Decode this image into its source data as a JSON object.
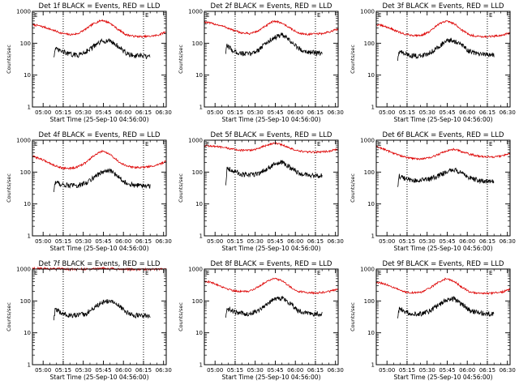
{
  "figure": {
    "x_tick_labels": [
      "05:00",
      "05:15",
      "05:30",
      "05:45",
      "06:00",
      "06:15",
      "06:30"
    ],
    "y_tick_labels": [
      "1",
      "10",
      "100",
      "1000"
    ],
    "xlabel": "Start Time (25-Sep-10 04:56:00)",
    "ylabel": "Counts/sec",
    "marker_label": "E"
  },
  "colors": {
    "events": "#000000",
    "lld": "#dd0000",
    "vline": "#000000"
  },
  "chart_data": [
    {
      "type": "line",
      "title": "Det 1f BLACK = Events, RED = LLD",
      "xlabel": "Start Time (25-Sep-10 04:56:00)",
      "ylabel": "Counts/sec",
      "log_y": true,
      "xlim_min": [
        -4,
        96
      ],
      "ylim": [
        1,
        1000
      ],
      "markers_min": [
        19,
        79
      ],
      "series": [
        {
          "key": "lld",
          "color": "#dd0000",
          "x": [
            -4,
            0,
            6,
            12,
            18,
            24,
            30,
            36,
            42,
            48,
            54,
            60,
            66,
            72,
            78,
            84,
            90,
            96
          ],
          "y": [
            380,
            360,
            310,
            250,
            205,
            185,
            200,
            280,
            420,
            530,
            430,
            270,
            185,
            165,
            160,
            165,
            180,
            230
          ]
        },
        {
          "key": "events",
          "color": "#000000",
          "x": [
            12,
            13,
            18,
            24,
            30,
            36,
            42,
            48,
            54,
            60,
            66,
            72,
            78,
            84
          ],
          "y": [
            40,
            65,
            55,
            45,
            42,
            55,
            80,
            115,
            120,
            80,
            48,
            40,
            40,
            36
          ]
        }
      ]
    },
    {
      "type": "line",
      "title": "Det 2f BLACK = Events, RED = LLD",
      "xlabel": "Start Time (25-Sep-10 04:56:00)",
      "ylabel": "Counts/sec",
      "log_y": true,
      "xlim_min": [
        -4,
        96
      ],
      "ylim": [
        1,
        1000
      ],
      "markers_min": [
        19,
        79
      ],
      "series": [
        {
          "key": "lld",
          "color": "#dd0000",
          "x": [
            -4,
            0,
            6,
            12,
            18,
            24,
            30,
            36,
            42,
            48,
            54,
            60,
            66,
            72,
            78,
            84,
            90,
            96
          ],
          "y": [
            470,
            430,
            380,
            320,
            250,
            210,
            200,
            240,
            350,
            500,
            430,
            300,
            210,
            190,
            195,
            200,
            230,
            280
          ]
        },
        {
          "key": "events",
          "color": "#000000",
          "x": [
            12,
            13,
            18,
            24,
            30,
            36,
            42,
            48,
            54,
            60,
            66,
            72,
            78,
            84
          ],
          "y": [
            50,
            85,
            55,
            48,
            46,
            60,
            100,
            150,
            180,
            120,
            70,
            55,
            50,
            48
          ]
        }
      ]
    },
    {
      "type": "line",
      "title": "Det 3f BLACK = Events, RED = LLD",
      "xlabel": "Start Time (25-Sep-10 04:56:00)",
      "ylabel": "Counts/sec",
      "log_y": true,
      "xlim_min": [
        -4,
        96
      ],
      "ylim": [
        1,
        1000
      ],
      "markers_min": [
        19,
        79
      ],
      "series": [
        {
          "key": "lld",
          "color": "#dd0000",
          "x": [
            -4,
            0,
            6,
            12,
            18,
            24,
            30,
            36,
            42,
            48,
            54,
            60,
            66,
            72,
            78,
            84,
            90,
            96
          ],
          "y": [
            380,
            360,
            300,
            230,
            190,
            175,
            180,
            230,
            380,
            500,
            420,
            260,
            180,
            165,
            160,
            165,
            180,
            210
          ]
        },
        {
          "key": "events",
          "color": "#000000",
          "x": [
            12,
            13,
            18,
            24,
            30,
            36,
            42,
            48,
            54,
            60,
            66,
            72,
            78,
            84
          ],
          "y": [
            30,
            55,
            45,
            40,
            40,
            50,
            75,
            115,
            120,
            85,
            55,
            45,
            45,
            42
          ]
        }
      ]
    },
    {
      "type": "line",
      "title": "Det 4f BLACK = Events, RED = LLD",
      "xlabel": "Start Time (25-Sep-10 04:56:00)",
      "ylabel": "Counts/sec",
      "log_y": true,
      "xlim_min": [
        -4,
        96
      ],
      "ylim": [
        1,
        1000
      ],
      "markers_min": [
        19,
        79
      ],
      "series": [
        {
          "key": "lld",
          "color": "#dd0000",
          "x": [
            -4,
            0,
            6,
            12,
            18,
            24,
            30,
            36,
            42,
            48,
            54,
            60,
            66,
            72,
            78,
            84,
            90,
            96
          ],
          "y": [
            310,
            280,
            220,
            165,
            135,
            130,
            145,
            200,
            330,
            450,
            360,
            220,
            155,
            140,
            140,
            150,
            170,
            220
          ]
        },
        {
          "key": "events",
          "color": "#000000",
          "x": [
            12,
            13,
            18,
            24,
            30,
            36,
            42,
            48,
            54,
            60,
            66,
            72,
            78,
            84
          ],
          "y": [
            25,
            50,
            40,
            38,
            38,
            45,
            70,
            100,
            110,
            75,
            45,
            38,
            38,
            36
          ]
        }
      ]
    },
    {
      "type": "line",
      "title": "Det 5f BLACK = Events, RED = LLD",
      "xlabel": "Start Time (25-Sep-10 04:56:00)",
      "ylabel": "Counts/sec",
      "log_y": true,
      "xlim_min": [
        -4,
        96
      ],
      "ylim": [
        1,
        1000
      ],
      "markers_min": [
        19,
        79
      ],
      "series": [
        {
          "key": "lld",
          "color": "#dd0000",
          "x": [
            -4,
            0,
            6,
            12,
            18,
            24,
            30,
            36,
            42,
            48,
            54,
            60,
            66,
            72,
            78,
            84,
            90,
            96
          ],
          "y": [
            680,
            660,
            620,
            570,
            520,
            480,
            480,
            540,
            680,
            820,
            720,
            560,
            460,
            430,
            420,
            430,
            460,
            520
          ]
        },
        {
          "key": "events",
          "color": "#000000",
          "x": [
            12,
            13,
            18,
            24,
            30,
            36,
            42,
            48,
            54,
            60,
            66,
            72,
            78,
            84
          ],
          "y": [
            40,
            140,
            105,
            85,
            80,
            90,
            120,
            170,
            200,
            140,
            95,
            80,
            78,
            76
          ]
        }
      ]
    },
    {
      "type": "line",
      "title": "Det 6f BLACK = Events, RED = LLD",
      "xlabel": "Start Time (25-Sep-10 04:56:00)",
      "ylabel": "Counts/sec",
      "log_y": true,
      "xlim_min": [
        -4,
        96
      ],
      "ylim": [
        1,
        1000
      ],
      "markers_min": [
        19,
        79
      ],
      "series": [
        {
          "key": "lld",
          "color": "#dd0000",
          "x": [
            -4,
            0,
            6,
            12,
            18,
            24,
            30,
            36,
            42,
            48,
            54,
            60,
            66,
            72,
            78,
            84,
            90,
            96
          ],
          "y": [
            620,
            560,
            440,
            350,
            290,
            265,
            260,
            280,
            350,
            460,
            520,
            440,
            360,
            320,
            300,
            300,
            320,
            380
          ]
        },
        {
          "key": "events",
          "color": "#000000",
          "x": [
            12,
            13,
            18,
            24,
            30,
            36,
            42,
            48,
            54,
            60,
            66,
            72,
            78,
            84
          ],
          "y": [
            35,
            75,
            60,
            55,
            55,
            60,
            75,
            100,
            120,
            90,
            65,
            55,
            52,
            50
          ]
        }
      ]
    },
    {
      "type": "line",
      "title": "Det 7f BLACK = Events, RED = LLD",
      "xlabel": "Start Time (25-Sep-10 04:56:00)",
      "ylabel": "Counts/sec",
      "log_y": true,
      "xlim_min": [
        -4,
        96
      ],
      "ylim": [
        1,
        1000
      ],
      "markers_min": [
        19,
        79
      ],
      "series": [
        {
          "key": "lld",
          "color": "#dd0000",
          "x": [
            -4,
            0,
            6,
            12,
            18,
            24,
            30,
            36,
            42,
            48,
            54,
            60,
            66,
            72,
            78,
            84,
            90,
            96
          ],
          "y": [
            1050,
            1050,
            1040,
            1020,
            1000,
            990,
            990,
            1000,
            1030,
            1060,
            1040,
            1010,
            990,
            980,
            980,
            980,
            990,
            1010
          ]
        },
        {
          "key": "events",
          "color": "#000000",
          "x": [
            12,
            13,
            18,
            24,
            30,
            36,
            42,
            48,
            54,
            60,
            66,
            72,
            78,
            84
          ],
          "y": [
            25,
            55,
            40,
            35,
            35,
            40,
            60,
            90,
            100,
            75,
            45,
            35,
            35,
            33
          ]
        }
      ]
    },
    {
      "type": "line",
      "title": "Det 8f BLACK = Events, RED = LLD",
      "xlabel": "Start Time (25-Sep-10 04:56:00)",
      "ylabel": "Counts/sec",
      "log_y": true,
      "xlim_min": [
        -4,
        96
      ],
      "ylim": [
        1,
        1000
      ],
      "markers_min": [
        19,
        79
      ],
      "series": [
        {
          "key": "lld",
          "color": "#dd0000",
          "x": [
            -4,
            0,
            6,
            12,
            18,
            24,
            30,
            36,
            42,
            48,
            54,
            60,
            66,
            72,
            78,
            84,
            90,
            96
          ],
          "y": [
            420,
            390,
            320,
            250,
            210,
            195,
            205,
            270,
            400,
            520,
            430,
            280,
            200,
            185,
            180,
            185,
            200,
            240
          ]
        },
        {
          "key": "events",
          "color": "#000000",
          "x": [
            12,
            13,
            18,
            24,
            30,
            36,
            42,
            48,
            54,
            60,
            66,
            72,
            78,
            84
          ],
          "y": [
            30,
            60,
            45,
            40,
            40,
            50,
            75,
            115,
            125,
            85,
            50,
            42,
            40,
            38
          ]
        }
      ]
    },
    {
      "type": "line",
      "title": "Det 9f BLACK = Events, RED = LLD",
      "xlabel": "Start Time (25-Sep-10 04:56:00)",
      "ylabel": "Counts/sec",
      "log_y": true,
      "xlim_min": [
        -4,
        96
      ],
      "ylim": [
        1,
        1000
      ],
      "markers_min": [
        19,
        79
      ],
      "series": [
        {
          "key": "lld",
          "color": "#dd0000",
          "x": [
            -4,
            0,
            6,
            12,
            18,
            24,
            30,
            36,
            42,
            48,
            54,
            60,
            66,
            72,
            78,
            84,
            90,
            96
          ],
          "y": [
            380,
            360,
            300,
            230,
            190,
            180,
            190,
            250,
            380,
            500,
            420,
            270,
            190,
            175,
            170,
            175,
            190,
            230
          ]
        },
        {
          "key": "events",
          "color": "#000000",
          "x": [
            12,
            13,
            18,
            24,
            30,
            36,
            42,
            48,
            54,
            60,
            66,
            72,
            78,
            84
          ],
          "y": [
            28,
            55,
            45,
            40,
            40,
            48,
            70,
            105,
            115,
            80,
            50,
            42,
            40,
            38
          ]
        }
      ]
    }
  ]
}
